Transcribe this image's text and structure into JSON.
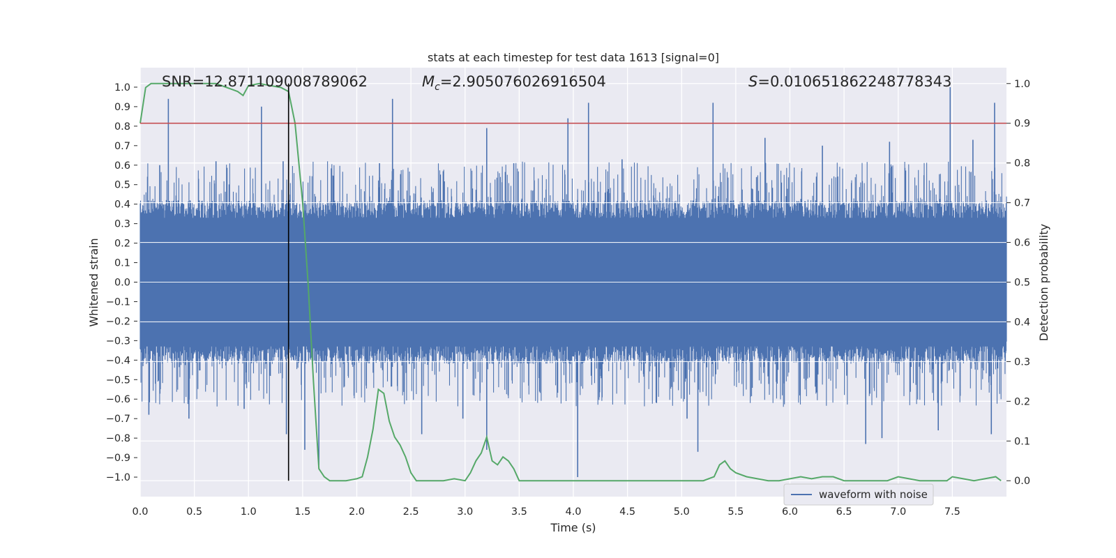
{
  "chart_data": {
    "type": "line",
    "title": "stats at each timestep for test data 1613 [signal=0]",
    "xlabel": "Time (s)",
    "ylabel": "Whitened strain",
    "y2label": "Detection probability",
    "xlim": [
      0.0,
      8.0
    ],
    "ylim": [
      -1.1,
      1.1
    ],
    "y2lim": [
      -0.04,
      1.04
    ],
    "xticks": [
      "0.0",
      "0.5",
      "1.0",
      "1.5",
      "2.0",
      "2.5",
      "3.0",
      "3.5",
      "4.0",
      "4.5",
      "5.0",
      "5.5",
      "6.0",
      "6.5",
      "7.0",
      "7.5"
    ],
    "xtick_values": [
      0.0,
      0.5,
      1.0,
      1.5,
      2.0,
      2.5,
      3.0,
      3.5,
      4.0,
      4.5,
      5.0,
      5.5,
      6.0,
      6.5,
      7.0,
      7.5
    ],
    "yticks": [
      "1.0",
      "0.9",
      "0.8",
      "0.7",
      "0.6",
      "0.5",
      "0.4",
      "0.3",
      "0.2",
      "0.1",
      "0.0",
      "−0.1",
      "−0.2",
      "−0.3",
      "−0.4",
      "−0.5",
      "−0.6",
      "−0.7",
      "−0.8",
      "−0.9",
      "−1.0"
    ],
    "ytick_values": [
      1.0,
      0.9,
      0.8,
      0.7,
      0.6,
      0.5,
      0.4,
      0.3,
      0.2,
      0.1,
      0.0,
      -0.1,
      -0.2,
      -0.3,
      -0.4,
      -0.5,
      -0.6,
      -0.7,
      -0.8,
      -0.9,
      -1.0
    ],
    "y2ticks": [
      "1.0",
      "0.9",
      "0.8",
      "0.7",
      "0.6",
      "0.5",
      "0.4",
      "0.3",
      "0.2",
      "0.1",
      "0.0"
    ],
    "y2tick_values": [
      1.0,
      0.9,
      0.8,
      0.7,
      0.6,
      0.5,
      0.4,
      0.3,
      0.2,
      0.1,
      0.0
    ],
    "annotations": {
      "snr": "SNR=12.871109008789062",
      "mc_symbol": "M",
      "mc_sub": "c",
      "mc_value": "=2.905076026916504",
      "s_symbol": "S",
      "s_value": "=0.010651862248778343"
    },
    "legend": {
      "label": "waveform with noise",
      "placement": "lower-right"
    },
    "threshold": {
      "value": 0.9,
      "axis": "y2",
      "color": "#c44e52"
    },
    "marker_time": 1.37,
    "waveform": {
      "name": "waveform with noise",
      "color": "#4c72b0",
      "time_range": [
        0.0,
        8.0
      ],
      "body_amplitude": [
        -0.4,
        0.4
      ],
      "peaks": [
        {
          "t": 0.26,
          "v": 0.94
        },
        {
          "t": 1.12,
          "v": 0.9
        },
        {
          "t": 2.33,
          "v": 0.94
        },
        {
          "t": 3.2,
          "v": 0.79
        },
        {
          "t": 3.95,
          "v": 0.84
        },
        {
          "t": 4.14,
          "v": 0.92
        },
        {
          "t": 5.29,
          "v": 0.92
        },
        {
          "t": 7.48,
          "v": 1.0
        },
        {
          "t": 7.89,
          "v": 0.92
        },
        {
          "t": 0.18,
          "v": 0.6
        },
        {
          "t": 0.7,
          "v": 0.62
        },
        {
          "t": 1.32,
          "v": 0.62
        },
        {
          "t": 2.21,
          "v": 0.61
        },
        {
          "t": 3.45,
          "v": 0.61
        },
        {
          "t": 4.45,
          "v": 0.63
        },
        {
          "t": 5.77,
          "v": 0.74
        },
        {
          "t": 6.3,
          "v": 0.7
        },
        {
          "t": 6.92,
          "v": 0.72
        },
        {
          "t": 7.69,
          "v": 0.73
        }
      ],
      "troughs": [
        {
          "t": 0.08,
          "v": -0.68
        },
        {
          "t": 0.45,
          "v": -0.7
        },
        {
          "t": 1.35,
          "v": -0.78
        },
        {
          "t": 1.52,
          "v": -0.86
        },
        {
          "t": 1.65,
          "v": -0.94
        },
        {
          "t": 2.6,
          "v": -0.78
        },
        {
          "t": 3.2,
          "v": -0.86
        },
        {
          "t": 4.04,
          "v": -1.0
        },
        {
          "t": 5.15,
          "v": -0.87
        },
        {
          "t": 6.7,
          "v": -0.83
        },
        {
          "t": 6.85,
          "v": -0.8
        },
        {
          "t": 7.37,
          "v": -0.76
        },
        {
          "t": 7.86,
          "v": -0.78
        },
        {
          "t": 0.96,
          "v": -0.65
        },
        {
          "t": 2.98,
          "v": -0.7
        },
        {
          "t": 5.05,
          "v": -0.7
        }
      ]
    },
    "series": [
      {
        "name": "detection probability",
        "axis": "y2",
        "color": "#55a868",
        "x": [
          0.0,
          0.05,
          0.1,
          0.2,
          0.3,
          0.4,
          0.5,
          0.6,
          0.7,
          0.8,
          0.85,
          0.9,
          0.95,
          1.0,
          1.1,
          1.2,
          1.3,
          1.37,
          1.43,
          1.5,
          1.55,
          1.6,
          1.65,
          1.7,
          1.75,
          1.8,
          1.9,
          2.0,
          2.05,
          2.1,
          2.15,
          2.2,
          2.25,
          2.3,
          2.35,
          2.4,
          2.45,
          2.5,
          2.55,
          2.6,
          2.7,
          2.8,
          2.9,
          3.0,
          3.05,
          3.1,
          3.15,
          3.2,
          3.25,
          3.3,
          3.35,
          3.4,
          3.45,
          3.5,
          3.6,
          3.7,
          3.8,
          4.0,
          4.2,
          4.4,
          4.6,
          4.8,
          5.0,
          5.1,
          5.2,
          5.3,
          5.35,
          5.4,
          5.45,
          5.5,
          5.6,
          5.7,
          5.8,
          5.9,
          6.0,
          6.1,
          6.2,
          6.3,
          6.4,
          6.5,
          6.6,
          6.7,
          6.8,
          6.9,
          7.0,
          7.1,
          7.2,
          7.3,
          7.4,
          7.45,
          7.5,
          7.6,
          7.7,
          7.8,
          7.9,
          7.95
        ],
        "values": [
          0.9,
          0.99,
          1.0,
          1.0,
          1.0,
          1.0,
          1.0,
          1.0,
          1.0,
          0.99,
          0.985,
          0.98,
          0.97,
          0.995,
          1.0,
          0.995,
          0.99,
          0.98,
          0.9,
          0.7,
          0.5,
          0.25,
          0.03,
          0.01,
          0.0,
          0.0,
          0.0,
          0.005,
          0.01,
          0.06,
          0.13,
          0.23,
          0.22,
          0.15,
          0.11,
          0.09,
          0.06,
          0.02,
          0.0,
          0.0,
          0.0,
          0.0,
          0.005,
          0.0,
          0.02,
          0.05,
          0.07,
          0.11,
          0.05,
          0.04,
          0.06,
          0.05,
          0.03,
          0.0,
          0.0,
          0.0,
          0.0,
          0.0,
          0.0,
          0.0,
          0.0,
          0.0,
          0.0,
          0.0,
          0.0,
          0.01,
          0.04,
          0.05,
          0.03,
          0.02,
          0.01,
          0.005,
          0.0,
          0.0,
          0.005,
          0.01,
          0.005,
          0.01,
          0.01,
          0.0,
          0.0,
          0.0,
          0.0,
          0.0,
          0.01,
          0.005,
          0.0,
          0.0,
          0.0,
          0.0,
          0.01,
          0.005,
          0.0,
          0.005,
          0.01,
          0.0
        ]
      }
    ]
  }
}
